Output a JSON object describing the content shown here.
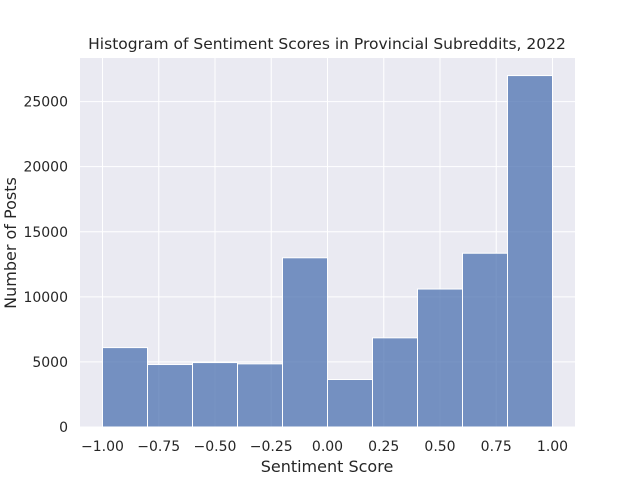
{
  "chart_data": {
    "type": "bar",
    "title": "Histogram of Sentiment Scores in Provincial Subreddits, 2022",
    "xlabel": "Sentiment Score",
    "ylabel": "Number of Posts",
    "bin_edges": [
      -1.0,
      -0.8,
      -0.6,
      -0.4,
      -0.2,
      0.0,
      0.2,
      0.4,
      0.6,
      0.8,
      1.0
    ],
    "values": [
      6100,
      4800,
      4950,
      4850,
      13000,
      3650,
      6850,
      10600,
      13350,
      27000
    ],
    "xlim": [
      -1.1,
      1.1
    ],
    "ylim": [
      0,
      28350
    ],
    "x_ticks": [
      -1.0,
      -0.75,
      -0.5,
      -0.25,
      0.0,
      0.25,
      0.5,
      0.75,
      1.0
    ],
    "x_tick_labels": [
      "−1.00",
      "−0.75",
      "−0.50",
      "−0.25",
      "0.00",
      "0.25",
      "0.50",
      "0.75",
      "1.00"
    ],
    "y_ticks": [
      0,
      5000,
      10000,
      15000,
      20000,
      25000
    ],
    "y_tick_labels": [
      "0",
      "5000",
      "10000",
      "15000",
      "20000",
      "25000"
    ],
    "grid": true,
    "colors": {
      "background": "#eaeaf2",
      "grid": "#ffffff",
      "bar_fill": "#4c72b0",
      "bar_edge": "#ffffff",
      "text": "#262626"
    }
  }
}
